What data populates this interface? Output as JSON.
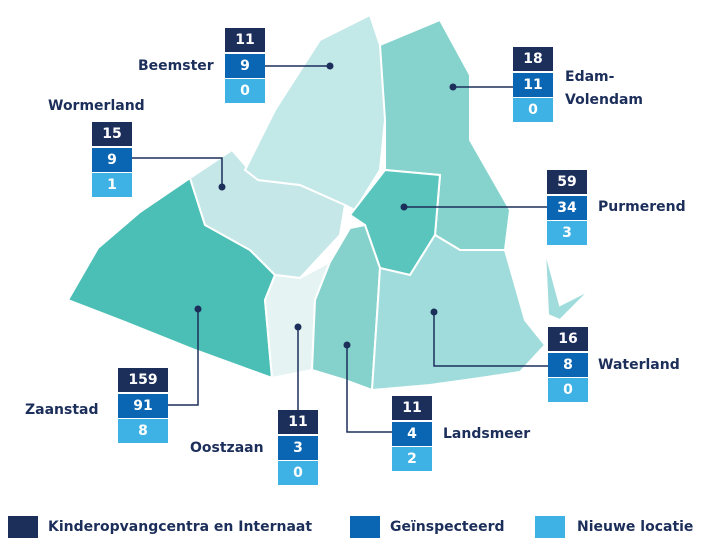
{
  "regions": [
    {
      "name": "Beemster",
      "values": [
        11,
        9,
        0
      ]
    },
    {
      "name": "Edam-Volendam",
      "values": [
        18,
        11,
        0
      ]
    },
    {
      "name": "Wormerland",
      "values": [
        15,
        9,
        1
      ]
    },
    {
      "name": "Purmerend",
      "values": [
        59,
        34,
        3
      ]
    },
    {
      "name": "Zaanstad",
      "values": [
        159,
        91,
        8
      ]
    },
    {
      "name": "Oostzaan",
      "values": [
        11,
        3,
        0
      ]
    },
    {
      "name": "Landsmeer",
      "values": [
        11,
        4,
        2
      ]
    },
    {
      "name": "Waterland",
      "values": [
        16,
        8,
        0
      ]
    }
  ],
  "legend": [
    "Kinderopvangcentra en Internaat",
    "Geïnspecteerd",
    "Nieuwe locatie"
  ]
}
